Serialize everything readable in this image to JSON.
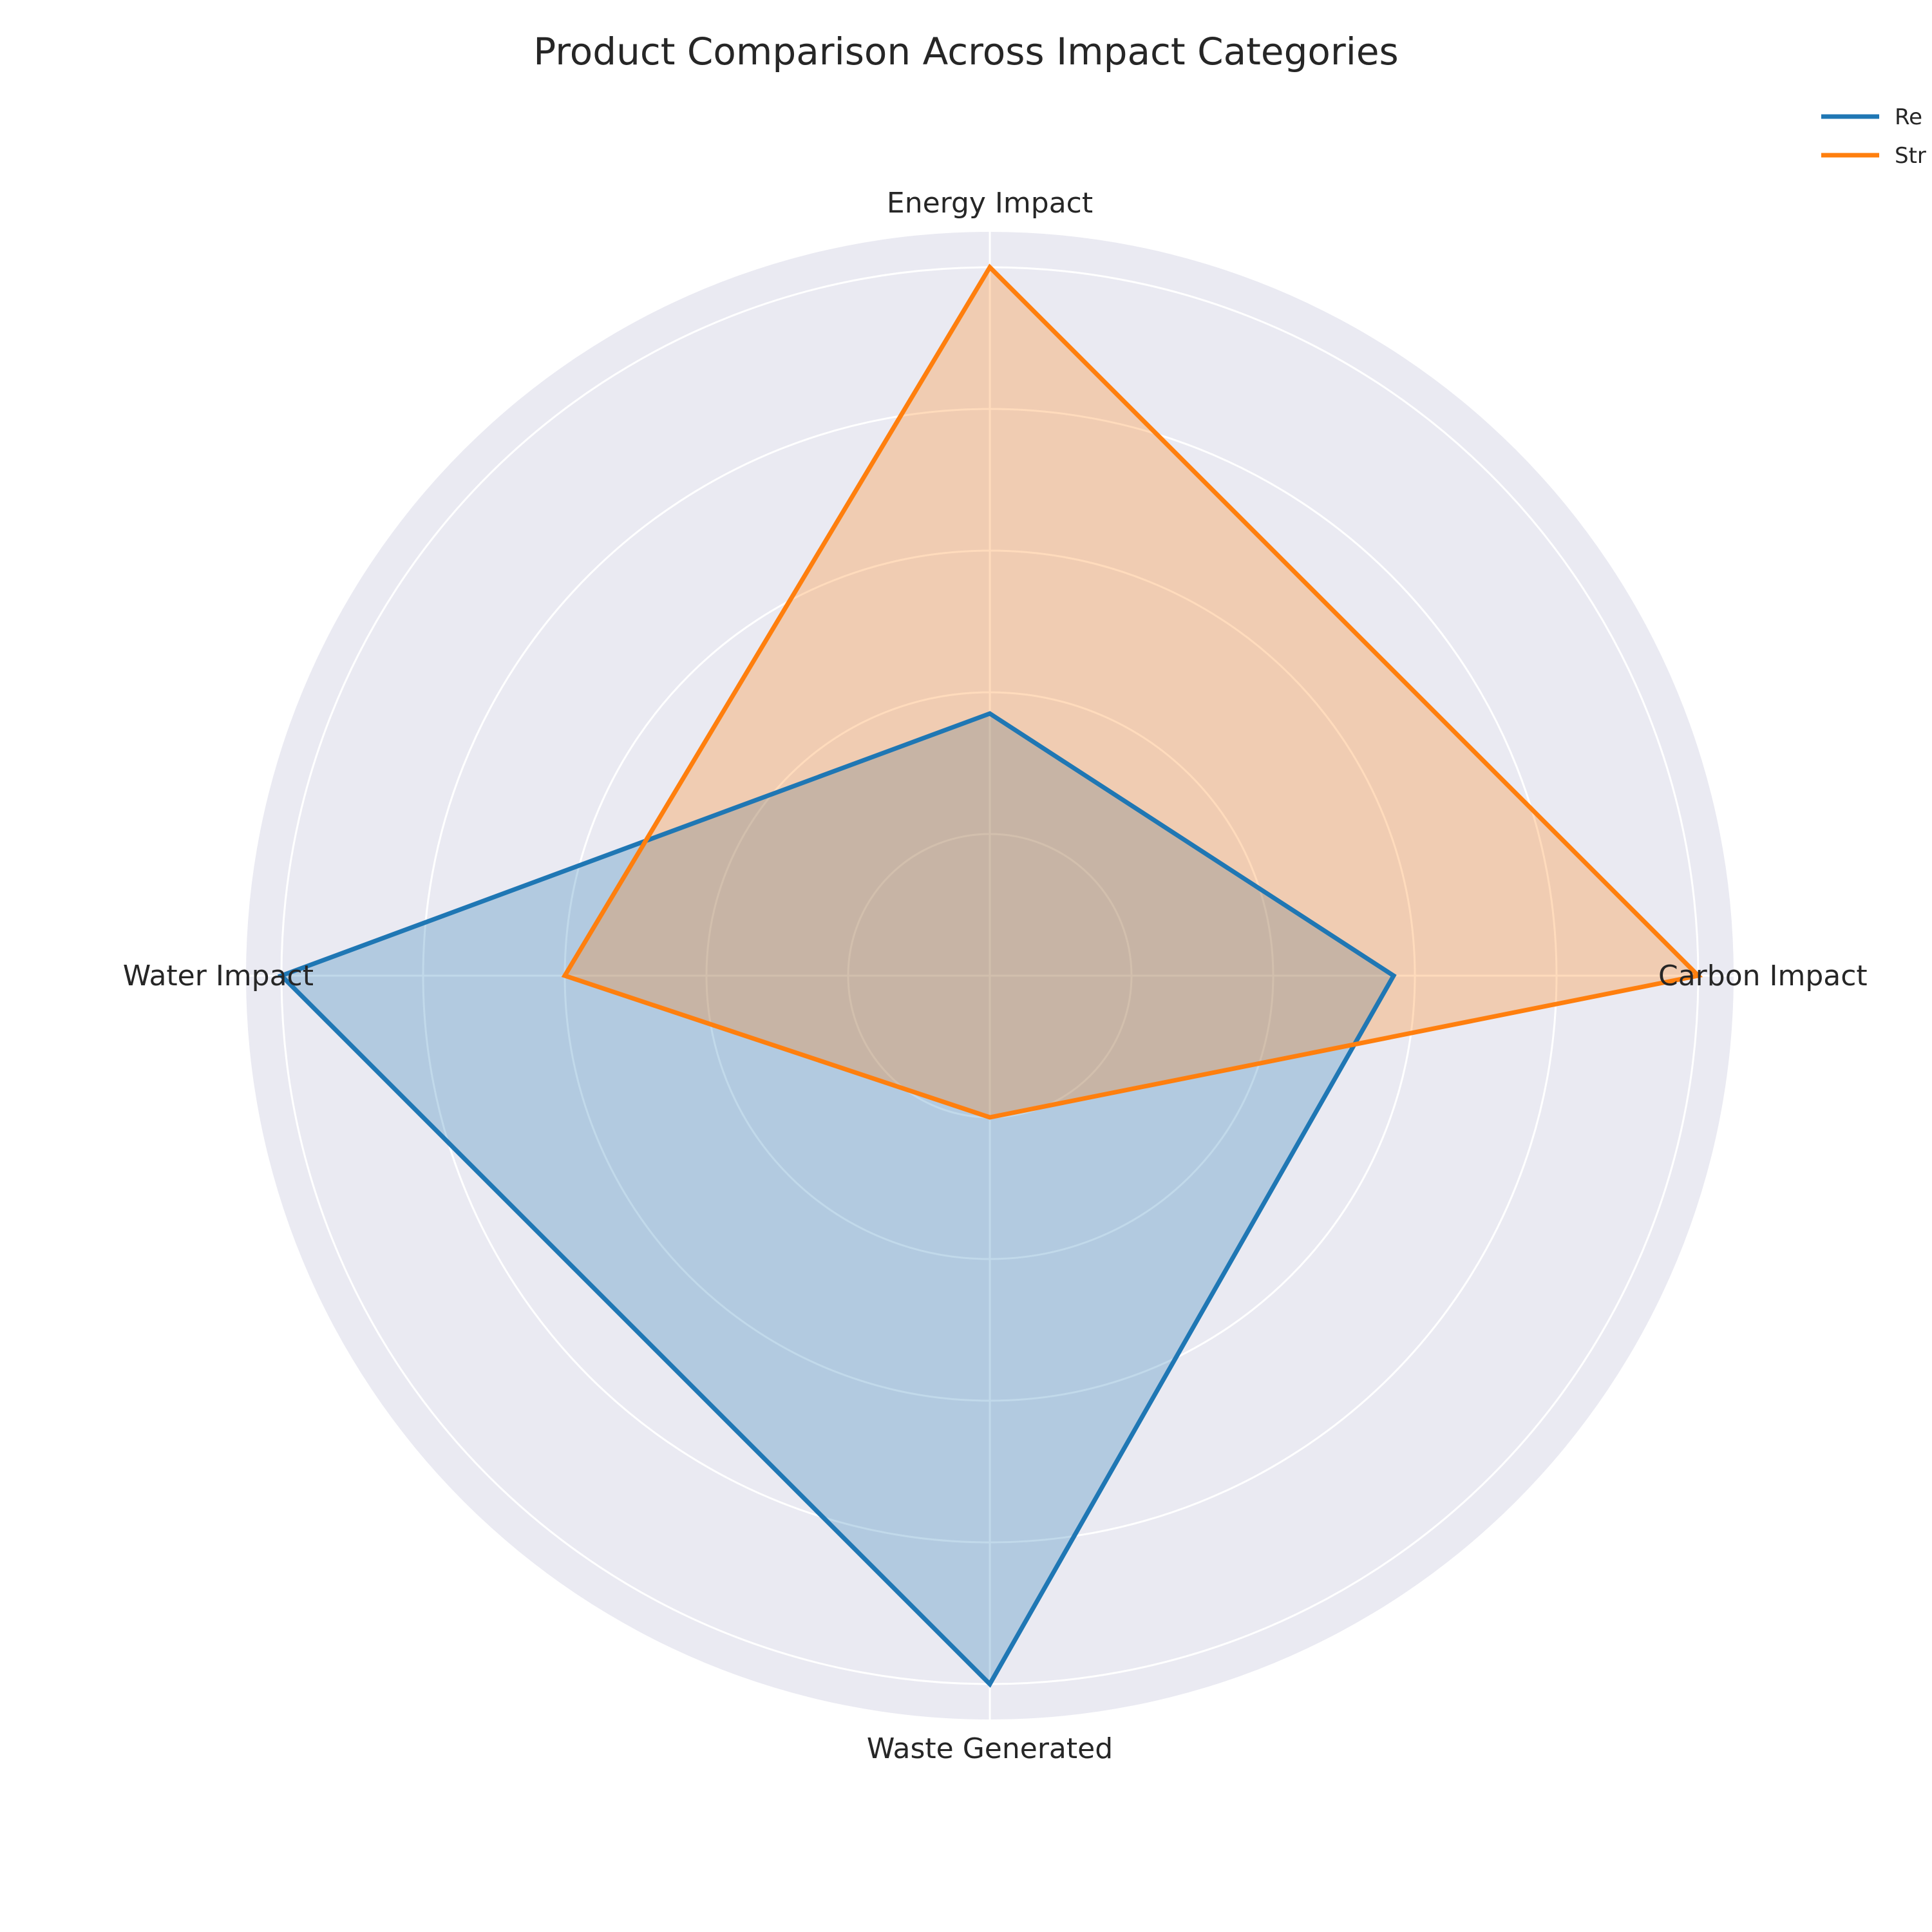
{
  "chart_data": {
    "type": "radar",
    "title": "Product Comparison Across Impact Categories",
    "axes": [
      "Energy Impact",
      "Carbon Impact",
      "Waste Generated",
      "Water Impact"
    ],
    "rlim": [
      0,
      1.05
    ],
    "rticks": [
      0.2,
      0.4,
      0.6,
      0.8,
      1.0
    ],
    "grid": true,
    "legend_position": "top-right",
    "series": [
      {
        "name": "Re",
        "color": "#1f77b4",
        "values": [
          0.37,
          0.57,
          1.0,
          1.0
        ]
      },
      {
        "name": "Str",
        "color": "#ff7f0e",
        "values": [
          1.0,
          1.0,
          0.2,
          0.6
        ]
      }
    ],
    "colors": {
      "plot_background": "#eaeaf2",
      "grid": "#ffffff",
      "text": "#262626"
    }
  }
}
